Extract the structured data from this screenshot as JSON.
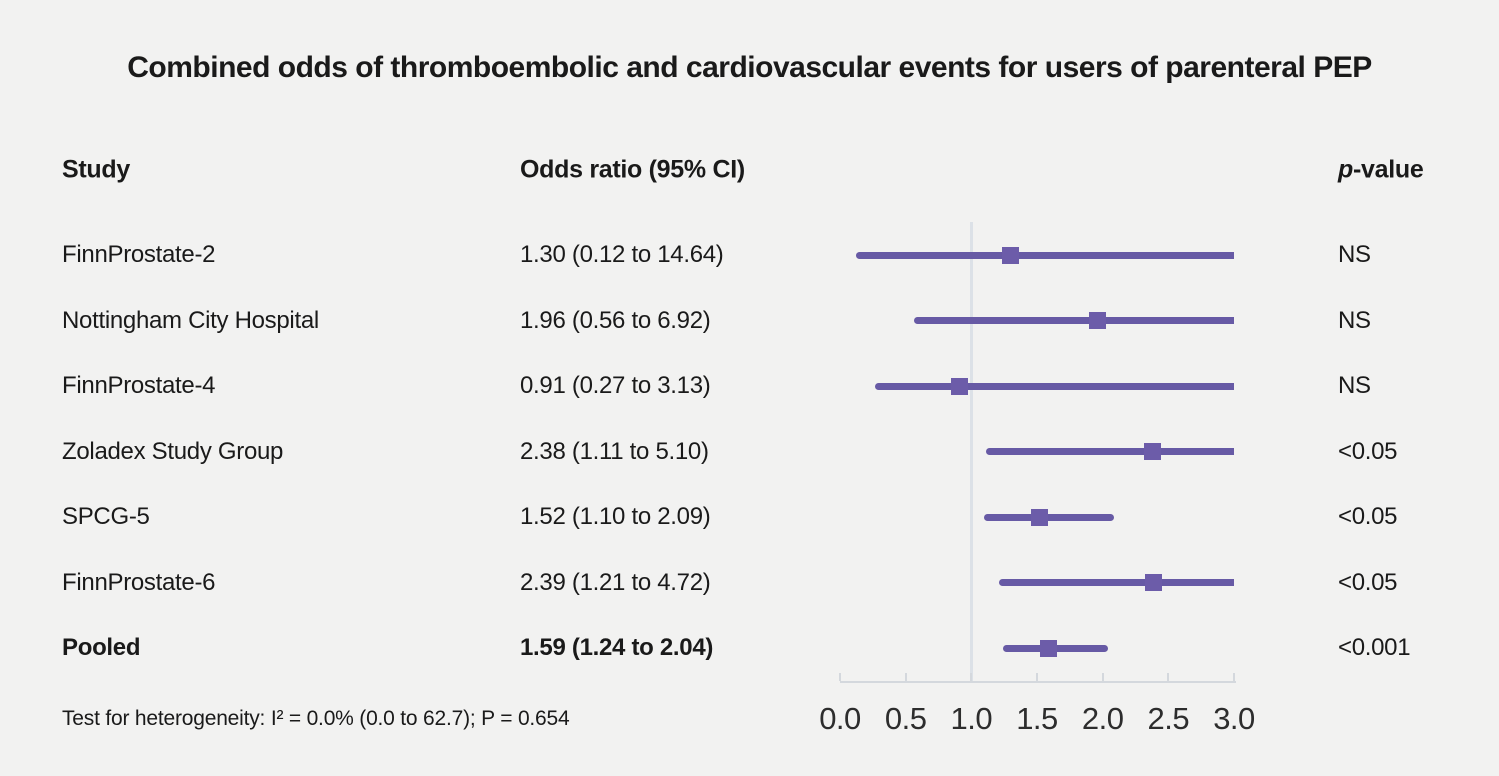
{
  "figure": {
    "title": "Combined odds of thromboembolic and cardiovascular events for users of parenteral PEP"
  },
  "table": {
    "columns": {
      "study": "Study",
      "odds_ratio": "Odds ratio (95% CI)",
      "p_italic": "p",
      "p_rest": "-value"
    }
  },
  "footer": {
    "heterogeneity": "Test for heterogeneity: I² = 0.0% (0.0 to 62.7); P = 0.654"
  },
  "colors": {
    "background": "#f2f2f1",
    "ci_line": "#675aa5",
    "marker": "#6c5ca9",
    "reference_line": "#dce1e7",
    "axis": "#d4d8dd",
    "text": "#1a1a1a"
  },
  "chart_data": {
    "type": "forest",
    "title": "Combined odds of thromboembolic and cardiovascular events for users of parenteral PEP",
    "xlabel": "",
    "xlim": [
      0.0,
      3.0
    ],
    "xticks": [
      "0.0",
      "0.5",
      "1.0",
      "1.5",
      "2.0",
      "2.5",
      "3.0"
    ],
    "reference_line": 1.0,
    "grid": false,
    "studies": [
      {
        "study": "FinnProstate-2",
        "odds_ratio": 1.3,
        "ci_low": 0.12,
        "ci_high": 14.64,
        "or_ci_text": "1.30 (0.12 to 14.64)",
        "p_value": "NS",
        "pooled": false
      },
      {
        "study": "Nottingham City Hospital",
        "odds_ratio": 1.96,
        "ci_low": 0.56,
        "ci_high": 6.92,
        "or_ci_text": "1.96 (0.56 to 6.92)",
        "p_value": "NS",
        "pooled": false
      },
      {
        "study": "FinnProstate-4",
        "odds_ratio": 0.91,
        "ci_low": 0.27,
        "ci_high": 3.13,
        "or_ci_text": "0.91 (0.27 to 3.13)",
        "p_value": "NS",
        "pooled": false
      },
      {
        "study": "Zoladex Study Group",
        "odds_ratio": 2.38,
        "ci_low": 1.11,
        "ci_high": 5.1,
        "or_ci_text": "2.38 (1.11 to 5.10)",
        "p_value": "<0.05",
        "pooled": false
      },
      {
        "study": "SPCG-5",
        "odds_ratio": 1.52,
        "ci_low": 1.1,
        "ci_high": 2.09,
        "or_ci_text": "1.52 (1.10 to 2.09)",
        "p_value": "<0.05",
        "pooled": false
      },
      {
        "study": "FinnProstate-6",
        "odds_ratio": 2.39,
        "ci_low": 1.21,
        "ci_high": 4.72,
        "or_ci_text": "2.39 (1.21 to 4.72)",
        "p_value": "<0.05",
        "pooled": false
      },
      {
        "study": "Pooled",
        "odds_ratio": 1.59,
        "ci_low": 1.24,
        "ci_high": 2.04,
        "or_ci_text": "1.59 (1.24 to 2.04)",
        "p_value": "<0.001",
        "pooled": true
      }
    ]
  }
}
